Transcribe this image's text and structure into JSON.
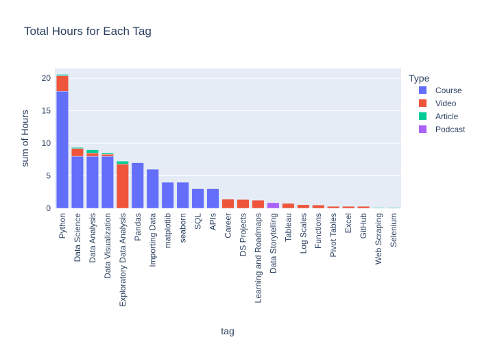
{
  "chart_data": {
    "type": "bar",
    "stacked": true,
    "title": "Total Hours for Each Tag",
    "xlabel": "tag",
    "ylabel": "sum of Hours",
    "ylim": [
      0,
      21.5
    ],
    "yticks": [
      0,
      5,
      10,
      15,
      20
    ],
    "grid": true,
    "legend": {
      "title": "Type",
      "placement": "top-right"
    },
    "categories": [
      "Python",
      "Data Science",
      "Data Analysis",
      "Data Visualization",
      "Exploratory Data Analysis",
      "Pandas",
      "Importing Data",
      "matplotlib",
      "seaborn",
      "SQL",
      "APIs",
      "Career",
      "DS Projects",
      "Learning and Roadmaps",
      "Data Storytelling",
      "Tableau",
      "Log Scales",
      "Functions",
      "Pivot Tables",
      "Excel",
      "GitHub",
      "Web Scraping",
      "Selenium"
    ],
    "series": [
      {
        "name": "Course",
        "color": "#636efa",
        "values": [
          18,
          8,
          8,
          8,
          0,
          7,
          6,
          4,
          4,
          3,
          3,
          0,
          0,
          0,
          0,
          0,
          0,
          0,
          0,
          0,
          0,
          0,
          0
        ]
      },
      {
        "name": "Video",
        "color": "#ef553b",
        "values": [
          2.4,
          1.2,
          0.5,
          0.3,
          6.8,
          0,
          0,
          0,
          0,
          0,
          0,
          1.4,
          1.35,
          1.25,
          0,
          0.75,
          0.55,
          0.5,
          0.3,
          0.3,
          0.3,
          0,
          0
        ]
      },
      {
        "name": "Article",
        "color": "#00cc96",
        "values": [
          0.2,
          0.15,
          0.5,
          0.2,
          0.45,
          0,
          0,
          0,
          0,
          0,
          0,
          0.05,
          0,
          0.05,
          0,
          0,
          0,
          0,
          0,
          0,
          0,
          0.1,
          0.1
        ]
      },
      {
        "name": "Podcast",
        "color": "#ab63fa",
        "values": [
          0,
          0,
          0,
          0,
          0,
          0,
          0,
          0,
          0,
          0,
          0,
          0,
          0,
          0,
          0.85,
          0,
          0,
          0,
          0,
          0,
          0,
          0,
          0
        ]
      }
    ]
  }
}
